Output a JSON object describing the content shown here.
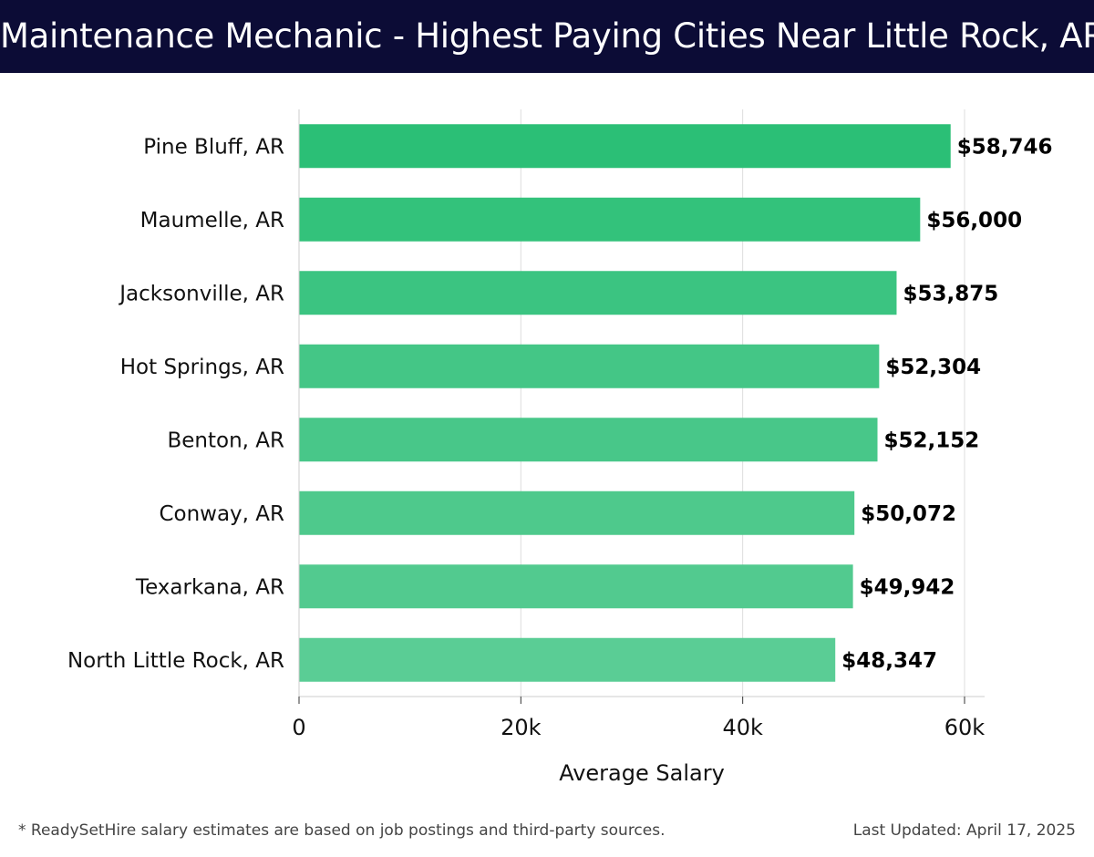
{
  "header": {
    "title": "Maintenance Mechanic - Highest Paying Cities Near Little Rock, AR"
  },
  "chart_data": {
    "type": "bar",
    "orientation": "horizontal",
    "title": "Maintenance Mechanic - Highest Paying Cities Near Little Rock, AR",
    "xlabel": "Average Salary",
    "ylabel": "",
    "xlim": [
      0,
      61500
    ],
    "xticks": [
      0,
      20000,
      40000,
      60000
    ],
    "xtick_labels": [
      "0",
      "20k",
      "40k",
      "60k"
    ],
    "grid": "vertical",
    "categories": [
      "Pine Bluff, AR",
      "Maumelle, AR",
      "Jacksonville, AR",
      "Hot Springs, AR",
      "Benton, AR",
      "Conway, AR",
      "Texarkana, AR",
      "North Little Rock, AR"
    ],
    "values": [
      58746,
      56000,
      53875,
      52304,
      52152,
      50072,
      49942,
      48347
    ],
    "value_labels": [
      "$58,746",
      "$56,000",
      "$53,875",
      "$52,304",
      "$52,152",
      "$50,072",
      "$49,942",
      "$48,347"
    ],
    "bar_colors": [
      "#2bbf76",
      "#33c27b",
      "#3bc481",
      "#44c686",
      "#48c789",
      "#4ec98c",
      "#52ca8f",
      "#5acd95"
    ]
  },
  "footer": {
    "note": "* ReadySetHire salary estimates are based on job postings and third-party sources.",
    "updated": "Last Updated: April 17, 2025"
  }
}
